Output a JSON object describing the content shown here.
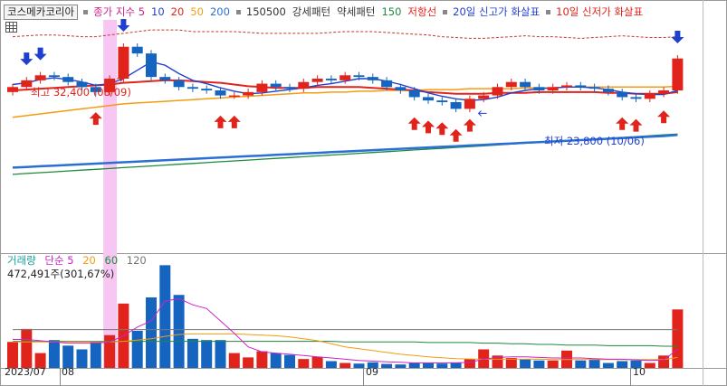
{
  "stock_name": "코스메카코리아",
  "legend": [
    {
      "text": "종가 지수 5",
      "color": "#cc2288"
    },
    {
      "text": "10",
      "color": "#1f3fcf"
    },
    {
      "text": "20",
      "color": "#e0241c"
    },
    {
      "text": "50",
      "color": "#f39c12"
    },
    {
      "text": "200",
      "color": "#2a6fd6"
    },
    {
      "text": "150500",
      "color": "#333333"
    },
    {
      "text": "강세패턴",
      "color": "#333333"
    },
    {
      "text": "약세패턴",
      "color": "#333333"
    },
    {
      "text": "150",
      "color": "#1e8a3c"
    },
    {
      "text": "저항선",
      "color": "#e0241c"
    },
    {
      "text": "20일 신고가 화살표",
      "color": "#1f3fcf"
    },
    {
      "text": "10일 신저가 화살표",
      "color": "#e0241c"
    }
  ],
  "volume_legend": [
    {
      "text": "거래량",
      "color": "#1aa0a0"
    },
    {
      "text": "단순 5",
      "color": "#cc22cc"
    },
    {
      "text": "20",
      "color": "#f39c12"
    },
    {
      "text": "60",
      "color": "#1e8a3c"
    },
    {
      "text": "120",
      "color": "#777777"
    }
  ],
  "volume_info": "472,491주(301,67%)",
  "max_label": "최고 32,400 (08/09)",
  "min_label": "최저 23,800 (10/06)",
  "x_labels": [
    "2023/07",
    "08",
    "09",
    "10"
  ],
  "colors": {
    "up": "#e0241c",
    "down": "#1565c0",
    "highlight": "#f8c6f2"
  },
  "chart_data": {
    "type": "candlestick",
    "y_range": [
      20000,
      34000
    ],
    "volume_max": 840000,
    "highlight_index": 7,
    "high_index": 7,
    "low_index": 32,
    "close": [
      30000,
      30400,
      30700,
      30600,
      30300,
      30000,
      29700,
      30500,
      32400,
      32000,
      30600,
      30400,
      30000,
      29900,
      29800,
      29500,
      29500,
      29700,
      30200,
      30000,
      29900,
      30300,
      30500,
      30400,
      30700,
      30600,
      30400,
      30000,
      29800,
      29400,
      29200,
      29100,
      28700,
      29300,
      29500,
      30000,
      30300,
      30000,
      29800,
      30000,
      30100,
      30000,
      29900,
      29700,
      29400,
      29300,
      29600,
      29800,
      31700
    ],
    "volume": [
      210000,
      315000,
      120000,
      225000,
      180000,
      150000,
      215000,
      265000,
      520000,
      300000,
      570000,
      830000,
      590000,
      235000,
      225000,
      225000,
      120000,
      85000,
      135000,
      120000,
      105000,
      72000,
      90000,
      55000,
      40000,
      35000,
      45000,
      32000,
      28000,
      43000,
      40000,
      35000,
      45000,
      72000,
      150000,
      100000,
      80000,
      70000,
      60000,
      60000,
      140000,
      60000,
      70000,
      40000,
      55000,
      60000,
      40000,
      100000,
      472491
    ],
    "ma5": [
      30150,
      30250,
      30450,
      30550,
      30450,
      30300,
      30100,
      30200,
      30500,
      31000,
      31500,
      31300,
      30800,
      30400,
      30200,
      29950,
      29750,
      29600,
      29650,
      29750,
      29850,
      29950,
      30100,
      30200,
      30350,
      30500,
      30500,
      30350,
      30150,
      29900,
      29650,
      29450,
      29300,
      29200,
      29250,
      29400,
      29650,
      29800,
      29900,
      29950,
      30000,
      30000,
      29950,
      29850,
      29700,
      29600,
      29550,
      29550,
      29800
    ],
    "ma20": [
      29800,
      29850,
      29900,
      29950,
      30000,
      30050,
      30100,
      30150,
      30250,
      30300,
      30350,
      30400,
      30400,
      30350,
      30300,
      30250,
      30150,
      30050,
      30000,
      29950,
      29950,
      29950,
      30000,
      30000,
      30000,
      30000,
      29950,
      29900,
      29850,
      29800,
      29700,
      29650,
      29600,
      29600,
      29600,
      29650,
      29650,
      29650,
      29700,
      29700,
      29700,
      29700,
      29700,
      29650,
      29650,
      29600,
      29600,
      29600,
      29700
    ],
    "ma50": [
      28200,
      28300,
      28400,
      28500,
      28600,
      28700,
      28800,
      28900,
      29000,
      29050,
      29100,
      29150,
      29200,
      29250,
      29300,
      29350,
      29400,
      29450,
      29500,
      29550,
      29600,
      29650,
      29650,
      29700,
      29700,
      29750,
      29750,
      29800,
      29800,
      29800,
      29850,
      29850,
      29850,
      29900,
      29900,
      29900,
      29900,
      29950,
      29950,
      29950,
      30000,
      30000,
      30000,
      30000,
      30000,
      30000,
      30000,
      30000,
      30050
    ],
    "ma150": [
      24800,
      24850,
      24900,
      24950,
      25000,
      25050,
      25100,
      25150,
      25200,
      25250,
      25300,
      25350,
      25400,
      25450,
      25500,
      25550,
      25600,
      25650,
      25700,
      25750,
      25800,
      25850,
      25900,
      25950,
      26000,
      26050,
      26100,
      26150,
      26200,
      26250,
      26300,
      26350,
      26400,
      26450,
      26500,
      26550,
      26600,
      26650,
      26700,
      26750,
      26800,
      26850,
      26900,
      26950,
      27000,
      27050,
      27100,
      27150,
      27200
    ],
    "ma200": [
      25200,
      25240,
      25280,
      25320,
      25360,
      25400,
      25440,
      25480,
      25520,
      25560,
      25600,
      25640,
      25680,
      25720,
      25760,
      25800,
      25840,
      25880,
      25920,
      25960,
      26000,
      26040,
      26080,
      26120,
      26160,
      26200,
      26240,
      26280,
      26320,
      26360,
      26400,
      26440,
      26480,
      26520,
      26560,
      26600,
      26640,
      26680,
      26720,
      26760,
      26800,
      26840,
      26880,
      26920,
      26960,
      27000,
      27040,
      27080,
      27150
    ],
    "resistance": [
      33000,
      33050,
      33100,
      33100,
      33050,
      33000,
      33000,
      33100,
      33200,
      33300,
      33400,
      33400,
      33400,
      33300,
      33300,
      33300,
      33300,
      33250,
      33200,
      33200,
      33200,
      33200,
      33200,
      33250,
      33300,
      33300,
      33300,
      33250,
      33200,
      33150,
      33100,
      33000,
      32950,
      32900,
      32900,
      32950,
      33000,
      33050,
      33000,
      33000,
      32950,
      32900,
      32950,
      33000,
      33050,
      33000,
      32950,
      32950,
      33000
    ],
    "down_arrows": [
      1,
      2,
      8,
      48
    ],
    "up_arrows": [
      6,
      15,
      16,
      29,
      30,
      31,
      32,
      33,
      44,
      45,
      47
    ],
    "vol_ma5": [
      230000,
      230000,
      220000,
      210000,
      200000,
      200000,
      200000,
      210000,
      260000,
      330000,
      380000,
      540000,
      560000,
      510000,
      480000,
      380000,
      280000,
      170000,
      130000,
      120000,
      110000,
      100000,
      90000,
      80000,
      70000,
      60000,
      55000,
      50000,
      45000,
      40000,
      40000,
      40000,
      40000,
      45000,
      70000,
      85000,
      90000,
      90000,
      85000,
      80000,
      80000,
      80000,
      75000,
      70000,
      70000,
      65000,
      60000,
      65000,
      150000
    ],
    "vol_ma20": [
      210000,
      210000,
      210000,
      210000,
      210000,
      210000,
      210000,
      210000,
      215000,
      225000,
      235000,
      255000,
      270000,
      275000,
      275000,
      275000,
      275000,
      270000,
      265000,
      260000,
      250000,
      235000,
      220000,
      195000,
      170000,
      155000,
      140000,
      125000,
      110000,
      100000,
      90000,
      82000,
      75000,
      72000,
      70000,
      70000,
      70000,
      70000,
      70000,
      68000,
      68000,
      68000,
      68000,
      68000,
      68000,
      68000,
      68000,
      68000,
      85000
    ],
    "vol_ma60": [
      215000,
      215000,
      215000,
      215000,
      215000,
      215000,
      215000,
      215000,
      215000,
      215000,
      215000,
      215000,
      215000,
      215000,
      215000,
      215000,
      215000,
      215000,
      215000,
      215000,
      215000,
      215000,
      215000,
      215000,
      210000,
      210000,
      210000,
      210000,
      210000,
      210000,
      205000,
      205000,
      205000,
      205000,
      200000,
      200000,
      195000,
      195000,
      190000,
      190000,
      185000,
      185000,
      185000,
      180000,
      180000,
      180000,
      180000,
      175000,
      175000
    ],
    "vol_ma120": [
      310000,
      310000,
      310000,
      310000,
      310000,
      310000,
      310000,
      310000,
      310000,
      310000,
      310000,
      310000,
      310000,
      310000,
      310000,
      310000,
      310000,
      310000,
      310000,
      310000,
      310000,
      310000,
      310000,
      310000,
      310000,
      310000,
      310000,
      310000,
      310000,
      310000,
      310000,
      310000,
      310000,
      310000,
      310000,
      310000,
      310000,
      310000,
      310000,
      310000,
      310000,
      310000,
      310000,
      310000,
      310000,
      310000,
      310000,
      310000,
      310000
    ]
  }
}
